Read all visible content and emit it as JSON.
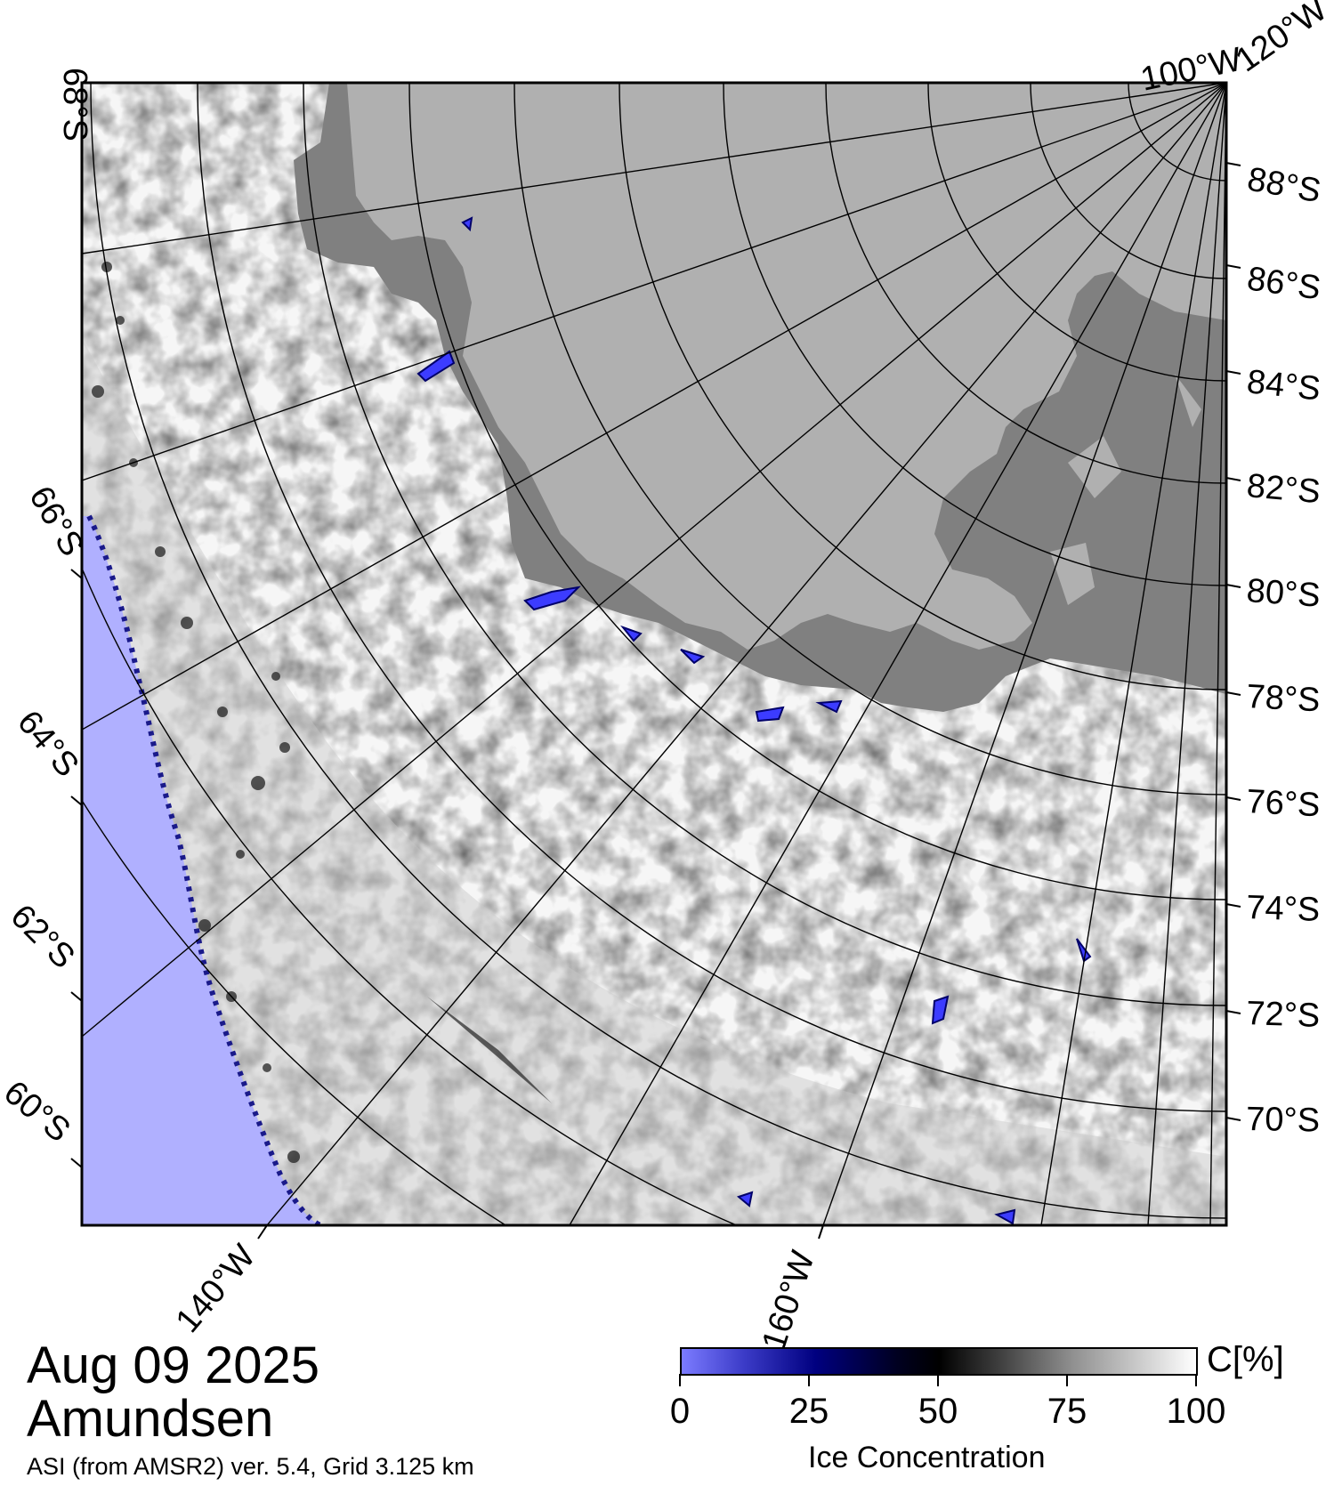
{
  "map": {
    "date": "Aug 09 2025",
    "region": "Amundsen",
    "product": "ASI (from AMSR2) ver. 5.4,  Grid 3.125 km",
    "lat_labels_right": [
      "88°S",
      "86°S",
      "84°S",
      "82°S",
      "80°S",
      "78°S",
      "76°S",
      "74°S",
      "72°S",
      "70°S"
    ],
    "lat_labels_left": [
      "68°S",
      "66°S",
      "64°S",
      "62°S",
      "60°S"
    ],
    "lon_labels": [
      "140°W",
      "160°W",
      "100°W",
      "120°W"
    ],
    "colors": {
      "open_water": "#b0b0ff",
      "land": "#b0b0b0",
      "ice_shelf": "#808080",
      "ice": "#ffffff"
    }
  },
  "colorbar": {
    "title": "Ice Concentration",
    "unit": "C[%]",
    "ticks": [
      "0",
      "25",
      "50",
      "75",
      "100"
    ],
    "tick_values": [
      0,
      25,
      50,
      75,
      100
    ],
    "range": [
      0,
      100
    ]
  }
}
